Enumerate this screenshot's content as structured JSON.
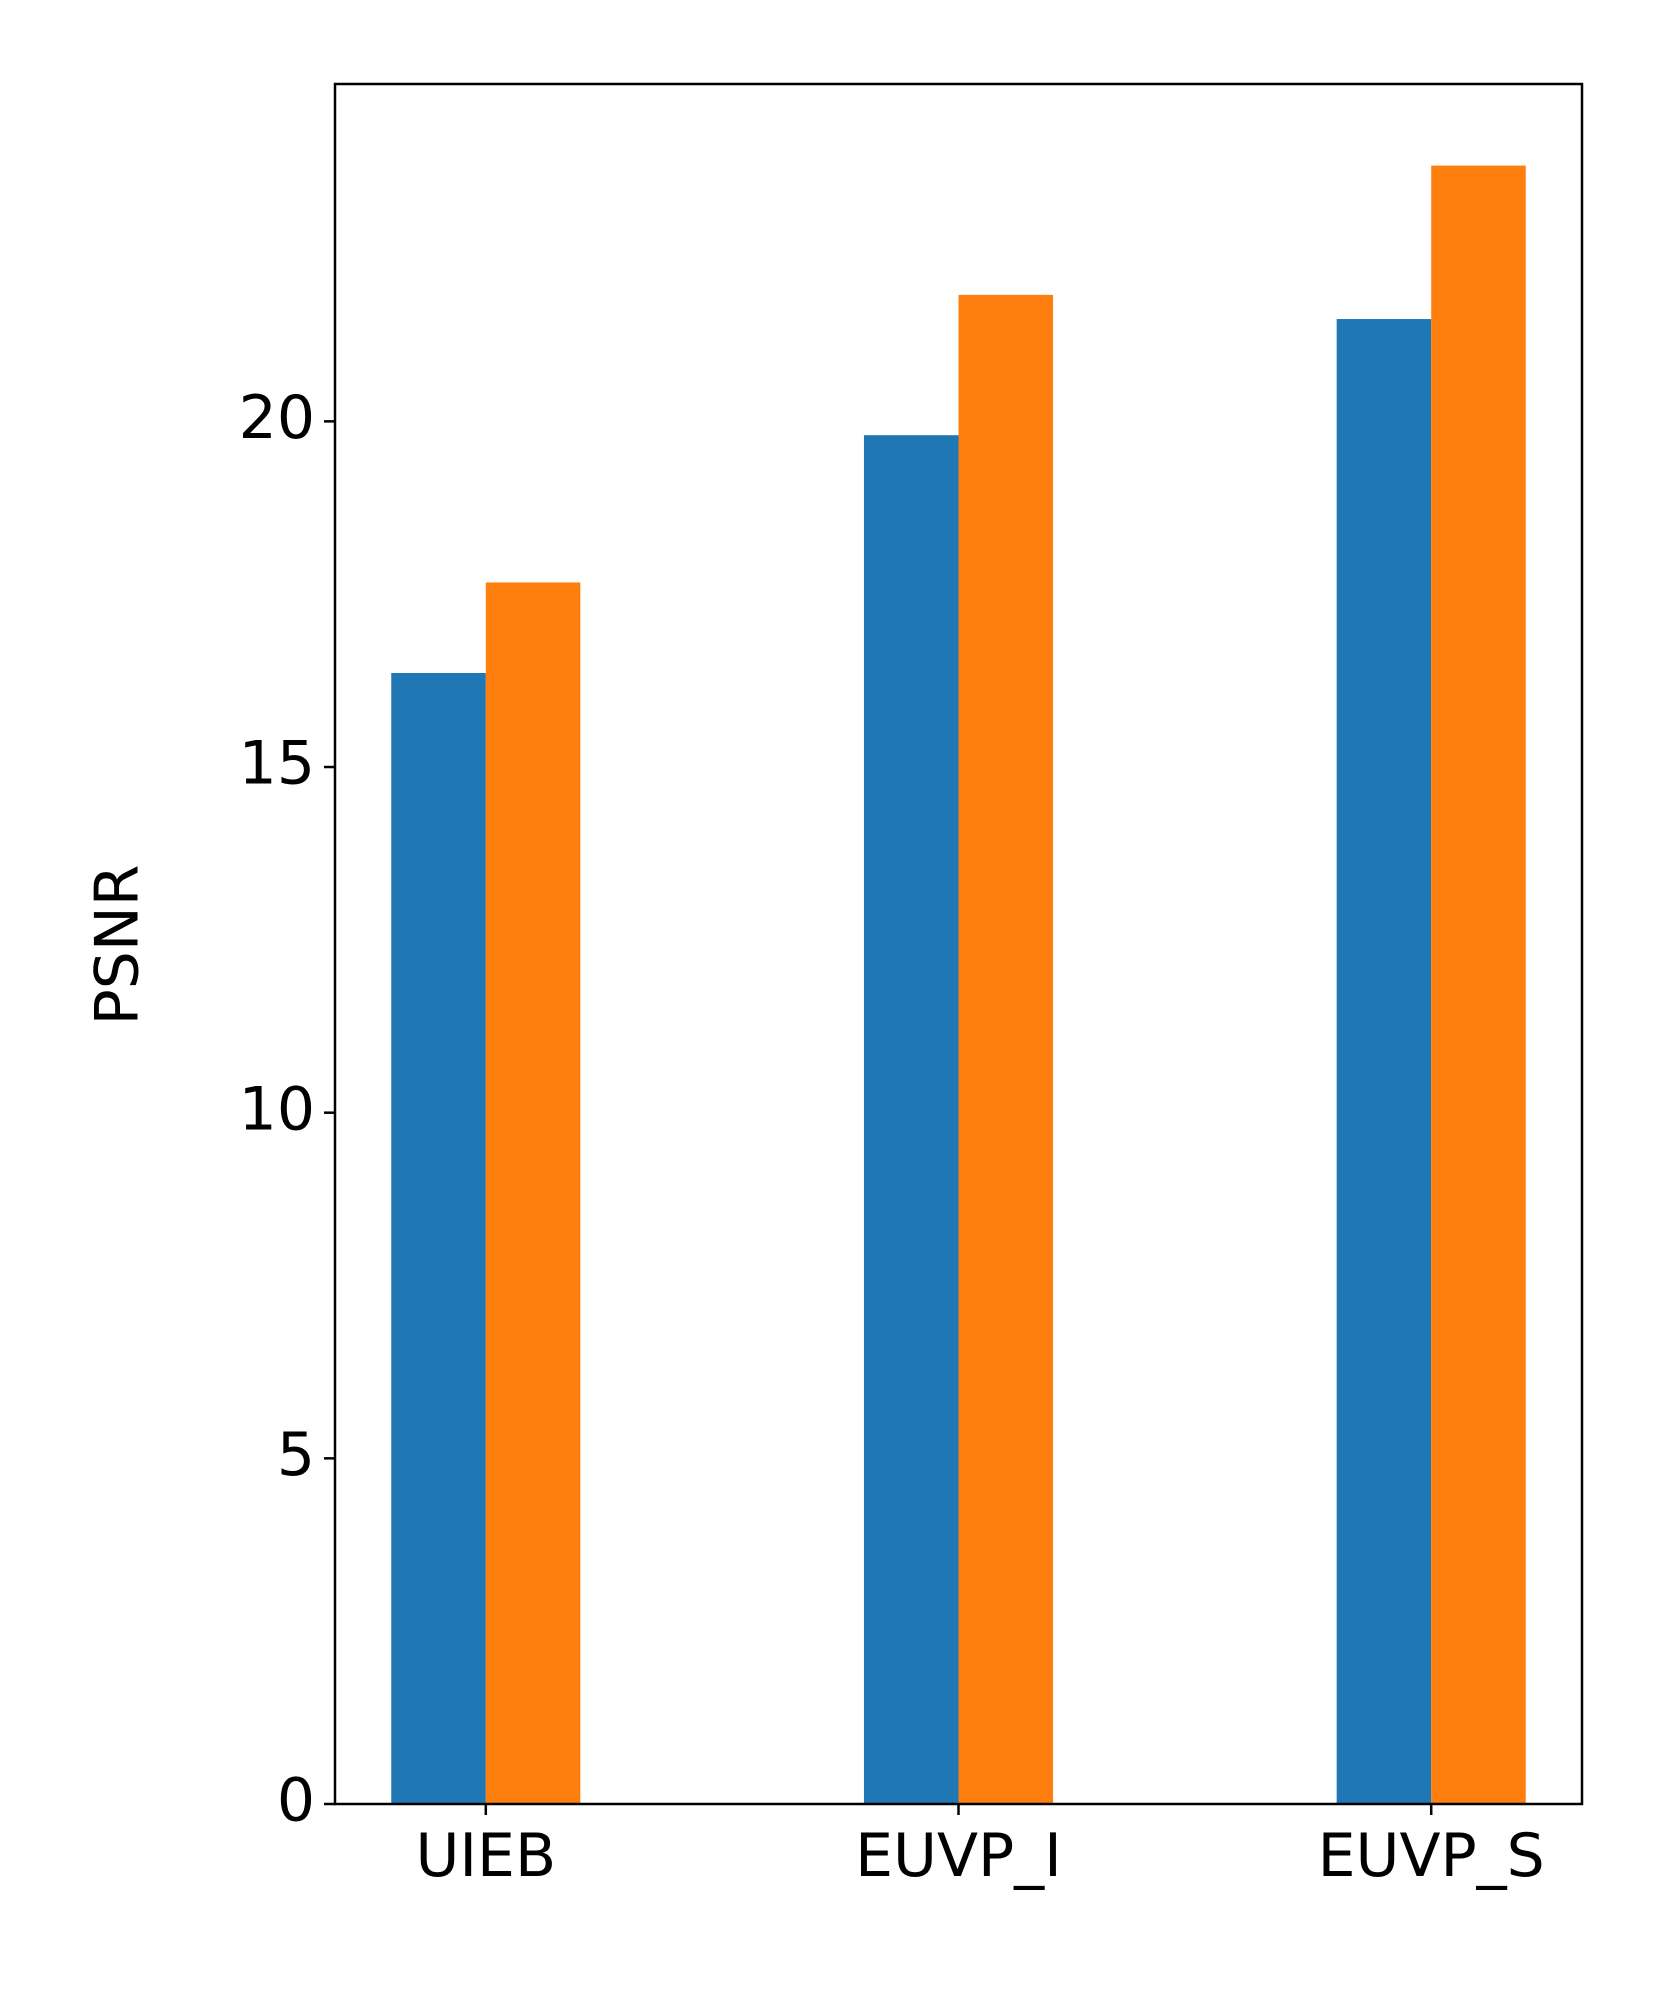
{
  "chart_data": {
    "type": "bar",
    "ylabel": "PSNR",
    "categories": [
      "UIEB",
      "EUVP_I",
      "EUVP_S"
    ],
    "series": [
      {
        "color": "#1f77b4",
        "values": [
          16.36,
          19.8,
          21.48
        ]
      },
      {
        "color": "#ff7f0e",
        "values": [
          17.67,
          21.83,
          23.7
        ]
      }
    ],
    "ylim": [
      0,
      24.88
    ],
    "yticks": [
      0,
      5,
      10,
      15,
      20
    ],
    "grid": false
  }
}
